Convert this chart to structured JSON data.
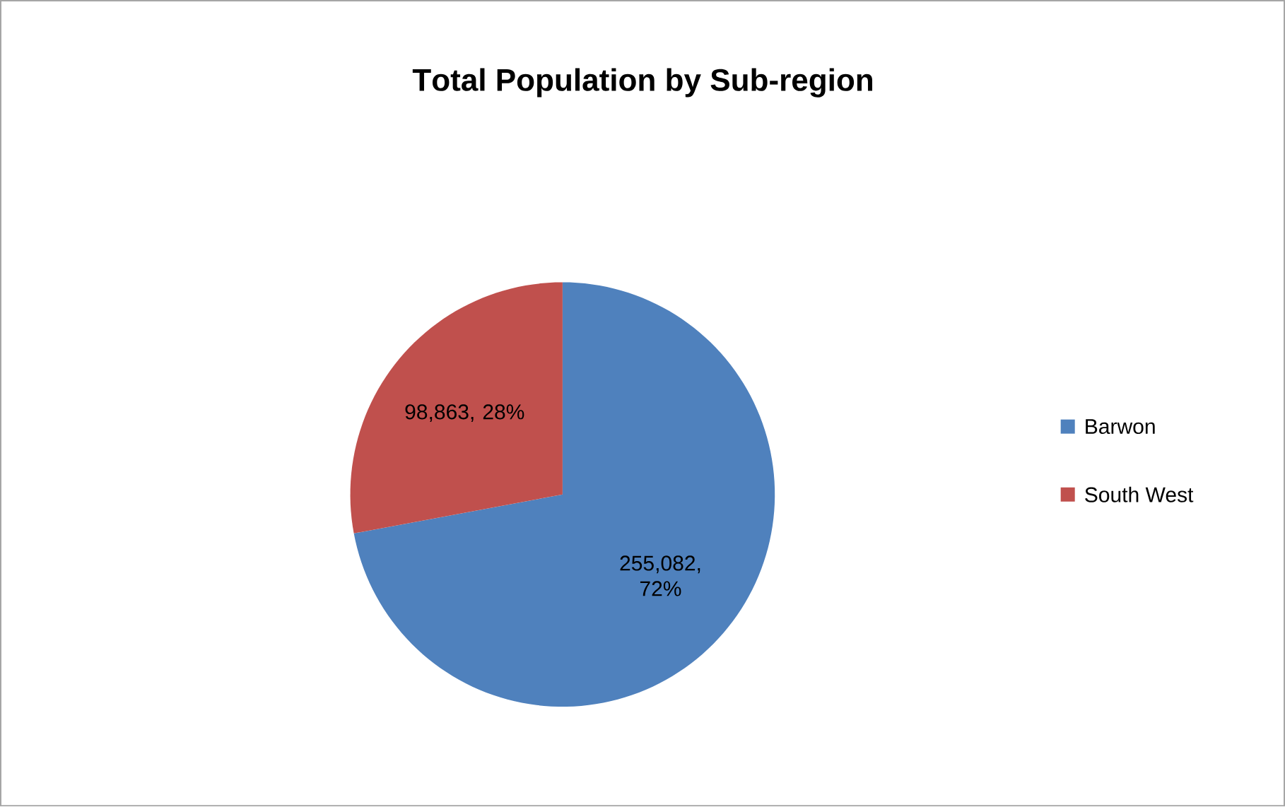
{
  "chart_data": {
    "type": "pie",
    "title": "**T**otal Population by Sub-region",
    "categories": [
      "Barwon",
      "South West"
    ],
    "values": [
      255082,
      98863
    ],
    "colors": [
      "#4f81bd",
      "#c0504d"
    ],
    "value_labels": [
      "255,082, 72%",
      "98,863, 28%"
    ],
    "legend": "right"
  }
}
